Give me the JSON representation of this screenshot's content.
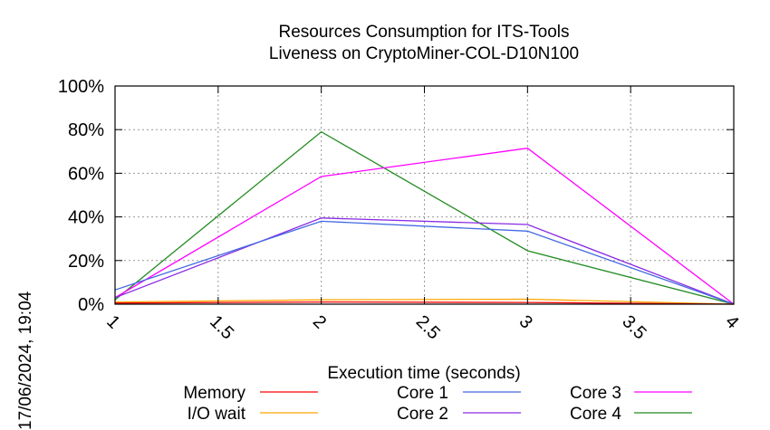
{
  "timestamp": "17/06/2024, 19:04",
  "chart_data": {
    "type": "line",
    "title": [
      "Resources Consumption for ITS-Tools",
      "Liveness on CryptoMiner-COL-D10N100"
    ],
    "xlabel": "Execution time (seconds)",
    "ylabel": "",
    "xlim": [
      1,
      4
    ],
    "ylim": [
      0,
      100
    ],
    "x_ticks": [
      "1",
      "1.5",
      "2",
      "2.5",
      "3",
      "3.5",
      "4"
    ],
    "y_ticks": [
      "0%",
      "20%",
      "40%",
      "60%",
      "80%",
      "100%"
    ],
    "grid": true,
    "legend_position": "bottom",
    "x": [
      1,
      2,
      3,
      4
    ],
    "series": [
      {
        "name": "Memory",
        "color": "#ff0000",
        "values": [
          0.5,
          1.0,
          0.8,
          0
        ]
      },
      {
        "name": "I/O wait",
        "color": "#ffa500",
        "values": [
          1.0,
          2.0,
          2.3,
          0
        ]
      },
      {
        "name": "Core 1",
        "color": "#4169e1",
        "values": [
          6.5,
          38,
          33.5,
          0
        ]
      },
      {
        "name": "Core 2",
        "color": "#8a2be2",
        "values": [
          3,
          39.5,
          36.5,
          0
        ]
      },
      {
        "name": "Core 3",
        "color": "#ff00ff",
        "values": [
          3,
          58.5,
          71.5,
          0
        ]
      },
      {
        "name": "Core 4",
        "color": "#228b22",
        "values": [
          2,
          79,
          24.5,
          0
        ]
      }
    ]
  }
}
